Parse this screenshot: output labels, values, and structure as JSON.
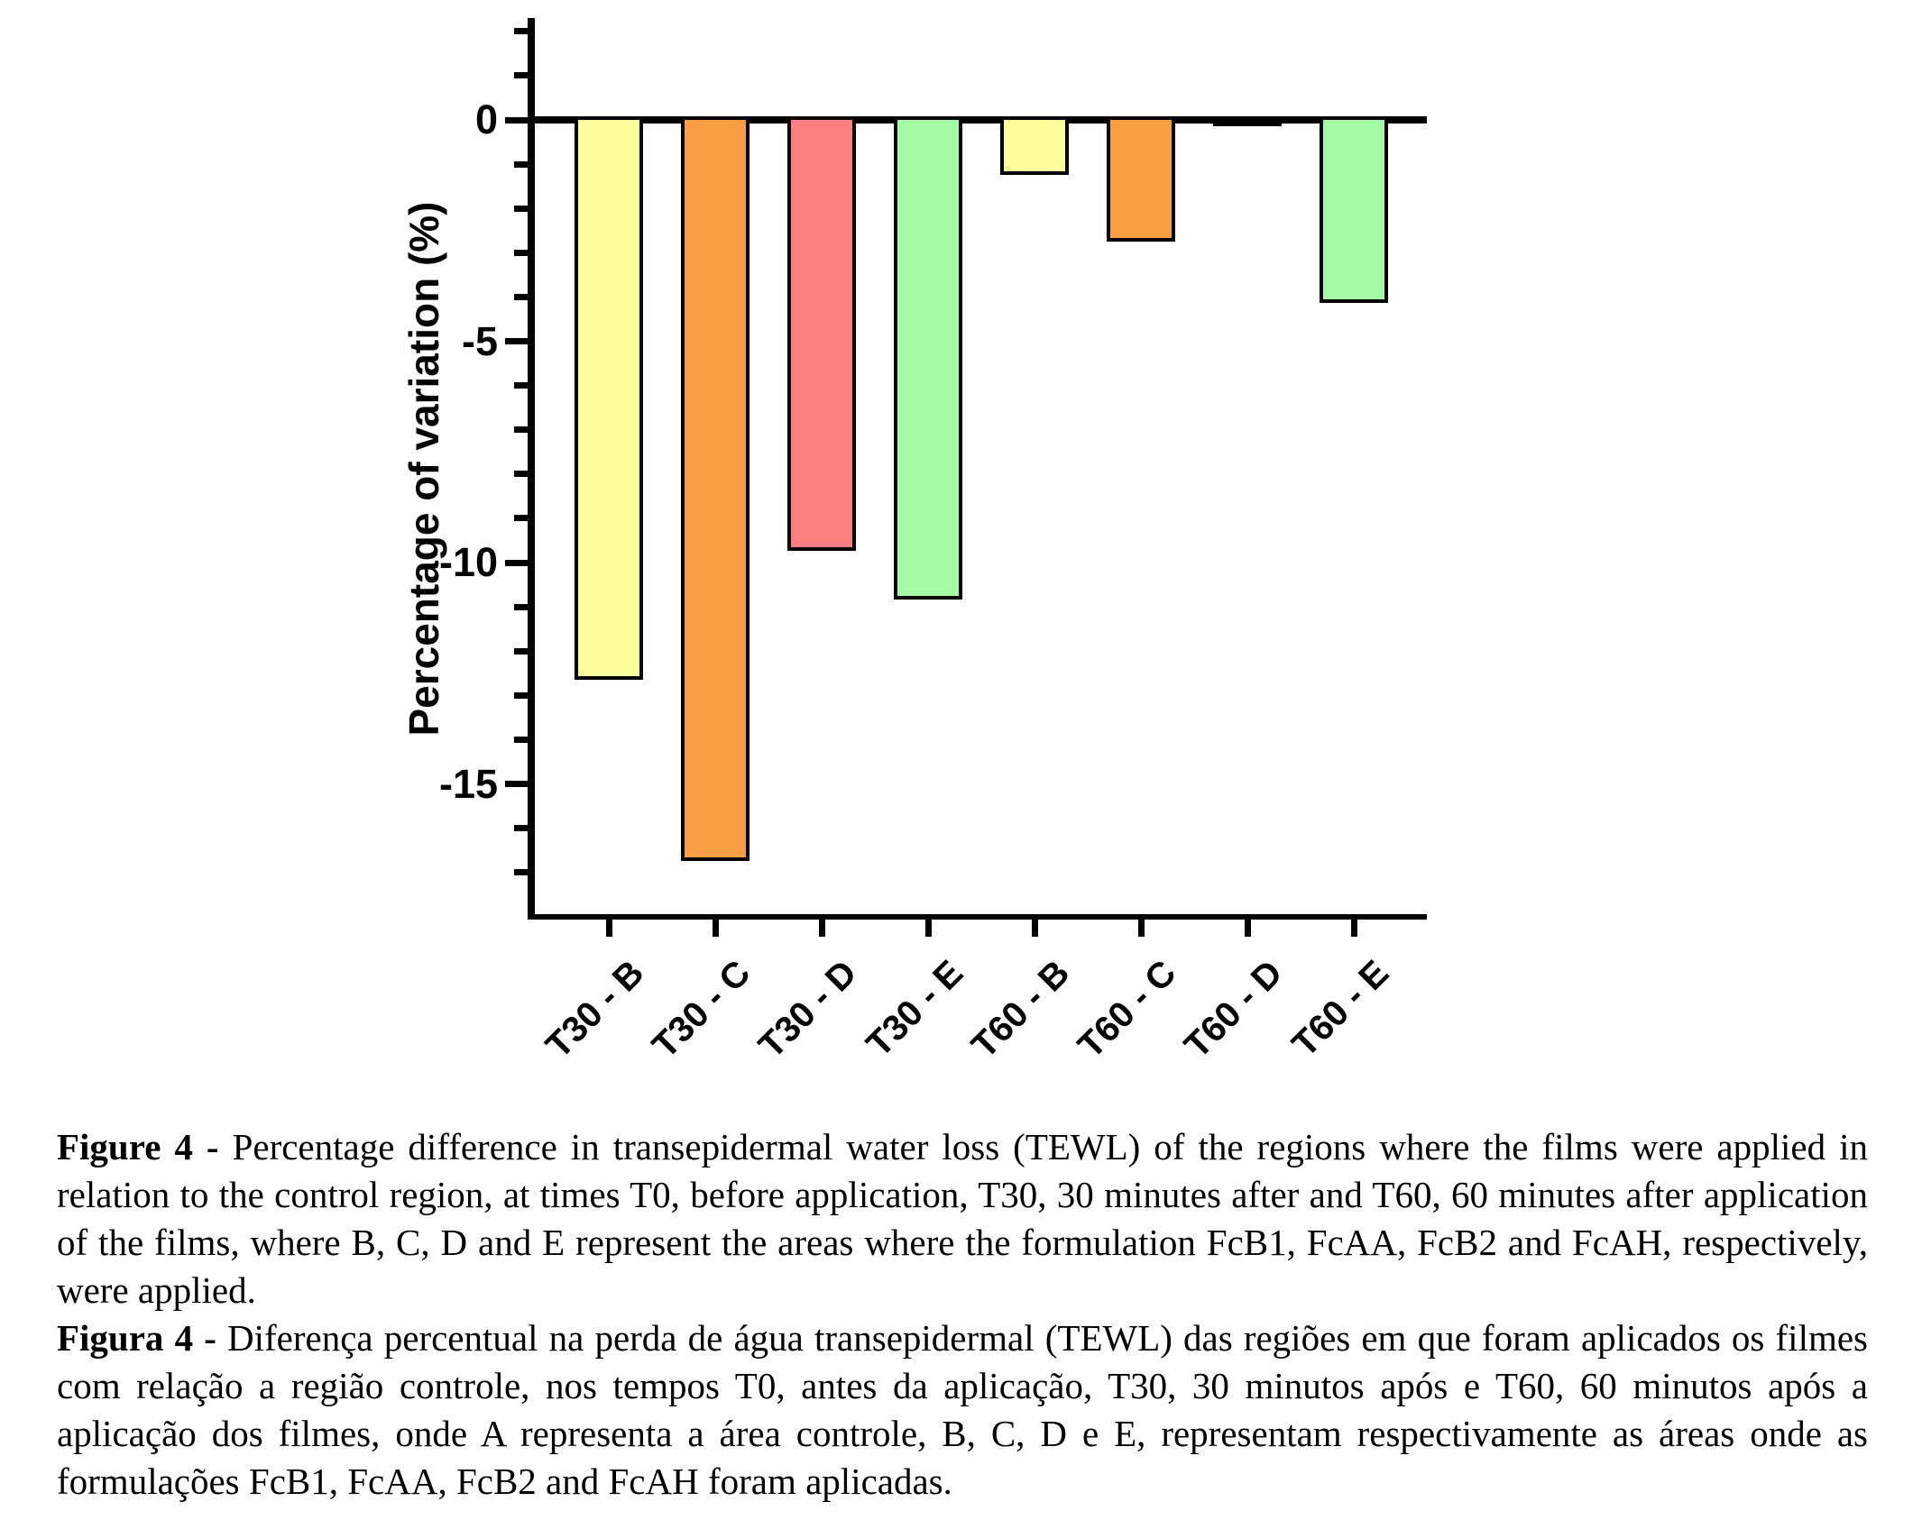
{
  "figure": {
    "caption_en": {
      "label": "Figure 4 -",
      "text": " Percentage difference in transepidermal water loss (TEWL) of the regions where the films were applied in relation to the control region, at times T0, before application, T30, 30 minutes after and T60, 60 minutes after application of the films, where B, C, D and E represent the areas where the formulation FcB1, FcAA, FcB2 and FcAH, respectively, were applied."
    },
    "caption_pt": {
      "label": "Figura 4 -",
      "text": " Diferença percentual na perda de água transepidermal (TEWL) das regiões em que foram aplicados os filmes com relação a região controle, nos tempos T0, antes da aplicação, T30, 30 minutos após e T60, 60 minutos após a aplicação dos filmes, onde A representa a área controle, B, C, D e E, representam respectivamente as áreas onde as formulações FcB1, FcAA, FcB2 and FcAH foram aplicadas."
    }
  },
  "chart_data": {
    "type": "bar",
    "title": "",
    "xlabel": "",
    "ylabel": "Percentage of variation (%)",
    "categories": [
      "T30 - B",
      "T30 - C",
      "T30 - D",
      "T30 - E",
      "T60 - B",
      "T60 - C",
      "T60 - D",
      "T60 - E"
    ],
    "values": [
      -12.6,
      -16.7,
      -9.7,
      -10.8,
      -1.2,
      -2.7,
      -0.1,
      -4.1
    ],
    "bar_colors": [
      "#FEFD9D",
      "#FA9F44",
      "#FB7F81",
      "#A5FBA5",
      "#FEFD9D",
      "#FA9F44",
      "#000000",
      "#A5FBA5"
    ],
    "bar_outline": "#000000",
    "ylim": [
      -18,
      2.3
    ],
    "yticks_major": [
      0,
      -5,
      -10,
      -15
    ],
    "ytick_labels": [
      "0",
      "-5",
      "-10",
      "-15"
    ],
    "minor_tick_step": 1,
    "grid": false,
    "legend": null,
    "baseline_value": 0
  }
}
